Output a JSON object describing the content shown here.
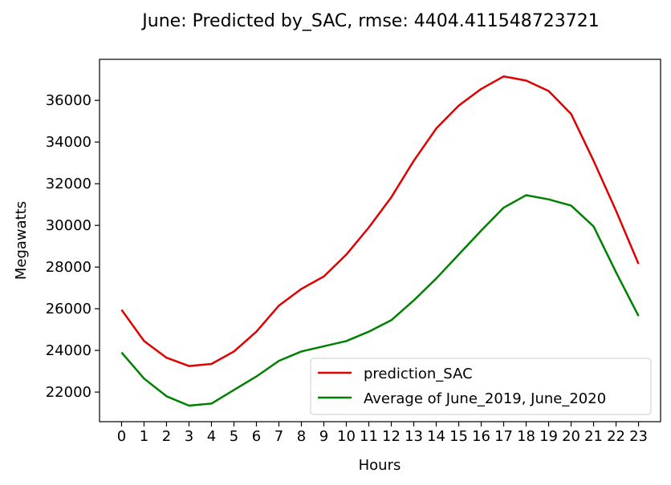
{
  "chart_data": {
    "type": "line",
    "title": "June: Predicted by_SAC, rmse: 4404.411548723721",
    "xlabel": "Hours",
    "ylabel": "Megawatts",
    "x": [
      0,
      1,
      2,
      3,
      4,
      5,
      6,
      7,
      8,
      9,
      10,
      11,
      12,
      13,
      14,
      15,
      16,
      17,
      18,
      19,
      20,
      21,
      22,
      23
    ],
    "xticks": [
      "0",
      "1",
      "2",
      "3",
      "4",
      "5",
      "6",
      "7",
      "8",
      "9",
      "10",
      "11",
      "12",
      "13",
      "14",
      "15",
      "16",
      "17",
      "18",
      "19",
      "20",
      "21",
      "22",
      "23"
    ],
    "yticks": [
      22000,
      24000,
      26000,
      28000,
      30000,
      32000,
      34000,
      36000
    ],
    "ytick_labels": [
      "22000",
      "24000",
      "26000",
      "28000",
      "30000",
      "32000",
      "34000",
      "36000"
    ],
    "xlim": [
      -0.98,
      23.98
    ],
    "ylim": [
      20580,
      37970
    ],
    "legend_position": "lower-right",
    "grid": false,
    "series": [
      {
        "name": "prediction_SAC",
        "color": "#e00000",
        "values": [
          25950,
          24450,
          23650,
          23250,
          23350,
          23950,
          24900,
          26150,
          26950,
          27550,
          28600,
          29900,
          31350,
          33100,
          34650,
          35750,
          36550,
          37150,
          36950,
          36450,
          35350,
          33100,
          30700,
          28150
        ]
      },
      {
        "name": "Average of June_2019, June_2020",
        "color": "#008000",
        "values": [
          23900,
          22650,
          21800,
          21350,
          21450,
          22100,
          22750,
          23500,
          23950,
          24200,
          24450,
          24900,
          25450,
          26400,
          27450,
          28600,
          29750,
          30850,
          31450,
          31250,
          30950,
          29950,
          27750,
          25650
        ]
      }
    ]
  }
}
